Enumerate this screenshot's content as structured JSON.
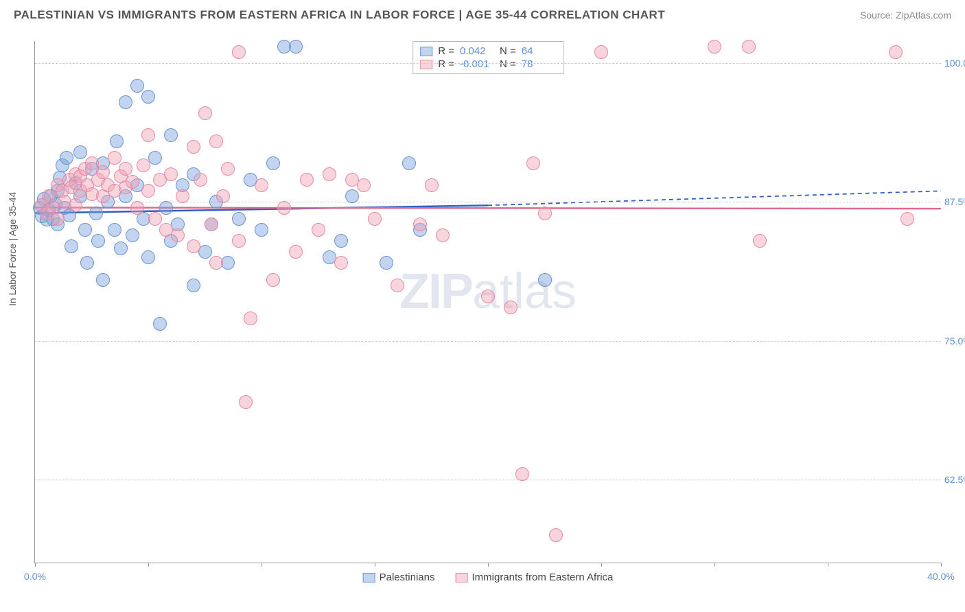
{
  "title": "PALESTINIAN VS IMMIGRANTS FROM EASTERN AFRICA IN LABOR FORCE | AGE 35-44 CORRELATION CHART",
  "source": "Source: ZipAtlas.com",
  "yaxis_label": "In Labor Force | Age 35-44",
  "watermark_bold": "ZIP",
  "watermark_rest": "atlas",
  "xlim": [
    0,
    40
  ],
  "ylim": [
    55,
    102
  ],
  "xtick_positions": [
    0,
    5,
    10,
    15,
    20,
    25,
    30,
    35,
    40
  ],
  "xtick_labels": {
    "0": "0.0%",
    "40": "40.0%"
  },
  "ytick_positions": [
    62.5,
    75.0,
    87.5,
    100.0
  ],
  "ytick_labels": [
    "62.5%",
    "75.0%",
    "87.5%",
    "100.0%"
  ],
  "grid_color": "#cccccc",
  "axis_color": "#999999",
  "background_color": "#ffffff",
  "tick_label_color": "#5b8fd6",
  "series": [
    {
      "name": "Palestinians",
      "key": "blue",
      "fill": "rgba(120,160,220,0.45)",
      "stroke": "#6a95cf",
      "line_color": "#2f5fc4",
      "r_label": "R =",
      "r_value": "0.042",
      "n_label": "N =",
      "n_value": "64",
      "marker_radius": 10,
      "trend": {
        "x1": 0,
        "y1": 86.5,
        "x2": 20,
        "y2": 87.2,
        "dash_x2": 40,
        "dash_y2": 88.5
      },
      "points": [
        [
          0.2,
          87.0
        ],
        [
          0.3,
          86.2
        ],
        [
          0.4,
          87.8
        ],
        [
          0.5,
          85.9
        ],
        [
          0.6,
          86.8
        ],
        [
          0.7,
          88.0
        ],
        [
          0.8,
          86.0
        ],
        [
          0.9,
          87.3
        ],
        [
          1.0,
          88.5
        ],
        [
          1.0,
          85.5
        ],
        [
          1.1,
          89.7
        ],
        [
          1.2,
          90.8
        ],
        [
          1.3,
          87.0
        ],
        [
          1.4,
          91.5
        ],
        [
          1.5,
          86.3
        ],
        [
          1.6,
          83.5
        ],
        [
          1.8,
          89.2
        ],
        [
          2.0,
          88.0
        ],
        [
          2.0,
          92.0
        ],
        [
          2.2,
          85.0
        ],
        [
          2.3,
          82.0
        ],
        [
          2.5,
          90.5
        ],
        [
          2.7,
          86.5
        ],
        [
          2.8,
          84.0
        ],
        [
          3.0,
          91.0
        ],
        [
          3.0,
          80.5
        ],
        [
          3.2,
          87.5
        ],
        [
          3.5,
          85.0
        ],
        [
          3.6,
          93.0
        ],
        [
          3.8,
          83.3
        ],
        [
          4.0,
          88.0
        ],
        [
          4.0,
          96.5
        ],
        [
          4.3,
          84.5
        ],
        [
          4.5,
          89.0
        ],
        [
          4.5,
          98.0
        ],
        [
          4.8,
          86.0
        ],
        [
          5.0,
          97.0
        ],
        [
          5.0,
          82.5
        ],
        [
          5.3,
          91.5
        ],
        [
          5.5,
          76.5
        ],
        [
          5.8,
          87.0
        ],
        [
          6.0,
          84.0
        ],
        [
          6.0,
          93.5
        ],
        [
          6.3,
          85.5
        ],
        [
          6.5,
          89.0
        ],
        [
          7.0,
          80.0
        ],
        [
          7.0,
          90.0
        ],
        [
          7.5,
          83.0
        ],
        [
          7.8,
          85.5
        ],
        [
          8.0,
          87.5
        ],
        [
          8.5,
          82.0
        ],
        [
          9.0,
          86.0
        ],
        [
          9.5,
          89.5
        ],
        [
          10.0,
          85.0
        ],
        [
          10.5,
          91.0
        ],
        [
          11.0,
          101.5
        ],
        [
          13.0,
          82.5
        ],
        [
          13.5,
          84.0
        ],
        [
          14.0,
          88.0
        ],
        [
          15.5,
          82.0
        ],
        [
          16.5,
          91.0
        ],
        [
          17.0,
          85.0
        ],
        [
          22.5,
          80.5
        ],
        [
          11.5,
          101.5
        ]
      ]
    },
    {
      "name": "Immigrants from Eastern Africa",
      "key": "pink",
      "fill": "rgba(240,160,180,0.45)",
      "stroke": "#e48aa4",
      "line_color": "#e06a8c",
      "r_label": "R =",
      "r_value": "-0.001",
      "n_label": "N =",
      "n_value": "78",
      "marker_radius": 10,
      "trend": {
        "x1": 0,
        "y1": 87.0,
        "x2": 40,
        "y2": 86.9
      },
      "points": [
        [
          0.3,
          87.2
        ],
        [
          0.5,
          86.5
        ],
        [
          0.6,
          88.0
        ],
        [
          0.8,
          87.0
        ],
        [
          1.0,
          89.0
        ],
        [
          1.0,
          86.0
        ],
        [
          1.2,
          88.5
        ],
        [
          1.3,
          87.5
        ],
        [
          1.5,
          89.5
        ],
        [
          1.6,
          88.8
        ],
        [
          1.8,
          90.0
        ],
        [
          1.8,
          87.2
        ],
        [
          2.0,
          89.8
        ],
        [
          2.0,
          88.5
        ],
        [
          2.2,
          90.5
        ],
        [
          2.3,
          89.0
        ],
        [
          2.5,
          88.2
        ],
        [
          2.5,
          91.0
        ],
        [
          2.8,
          89.5
        ],
        [
          3.0,
          90.2
        ],
        [
          3.0,
          88.0
        ],
        [
          3.2,
          89.0
        ],
        [
          3.5,
          88.5
        ],
        [
          3.5,
          91.5
        ],
        [
          3.8,
          89.8
        ],
        [
          4.0,
          88.8
        ],
        [
          4.0,
          90.5
        ],
        [
          4.3,
          89.3
        ],
        [
          4.5,
          87.0
        ],
        [
          4.8,
          90.8
        ],
        [
          5.0,
          93.5
        ],
        [
          5.0,
          88.5
        ],
        [
          5.3,
          86.0
        ],
        [
          5.5,
          89.5
        ],
        [
          5.8,
          85.0
        ],
        [
          6.0,
          90.0
        ],
        [
          6.3,
          84.5
        ],
        [
          6.5,
          88.0
        ],
        [
          7.0,
          92.5
        ],
        [
          7.0,
          83.5
        ],
        [
          7.3,
          89.5
        ],
        [
          7.5,
          95.5
        ],
        [
          7.8,
          85.5
        ],
        [
          8.0,
          93.0
        ],
        [
          8.0,
          82.0
        ],
        [
          8.3,
          88.0
        ],
        [
          8.5,
          90.5
        ],
        [
          9.0,
          101.0
        ],
        [
          9.0,
          84.0
        ],
        [
          9.3,
          69.5
        ],
        [
          9.5,
          77.0
        ],
        [
          10.0,
          89.0
        ],
        [
          10.5,
          80.5
        ],
        [
          11.0,
          87.0
        ],
        [
          11.5,
          83.0
        ],
        [
          12.0,
          89.5
        ],
        [
          12.5,
          85.0
        ],
        [
          13.0,
          90.0
        ],
        [
          13.5,
          82.0
        ],
        [
          14.0,
          89.5
        ],
        [
          14.5,
          89.0
        ],
        [
          15.0,
          86.0
        ],
        [
          16.0,
          80.0
        ],
        [
          17.0,
          85.5
        ],
        [
          17.5,
          89.0
        ],
        [
          18.0,
          84.5
        ],
        [
          20.0,
          79.0
        ],
        [
          21.0,
          78.0
        ],
        [
          21.5,
          63.0
        ],
        [
          22.0,
          91.0
        ],
        [
          23.0,
          57.5
        ],
        [
          25.0,
          101.0
        ],
        [
          30.0,
          101.5
        ],
        [
          31.5,
          101.5
        ],
        [
          32.0,
          84.0
        ],
        [
          38.5,
          86.0
        ],
        [
          38.0,
          101.0
        ],
        [
          22.5,
          86.5
        ]
      ]
    }
  ],
  "bottom_legend": [
    {
      "key": "blue",
      "label": "Palestinians"
    },
    {
      "key": "pink",
      "label": "Immigrants from Eastern Africa"
    }
  ]
}
